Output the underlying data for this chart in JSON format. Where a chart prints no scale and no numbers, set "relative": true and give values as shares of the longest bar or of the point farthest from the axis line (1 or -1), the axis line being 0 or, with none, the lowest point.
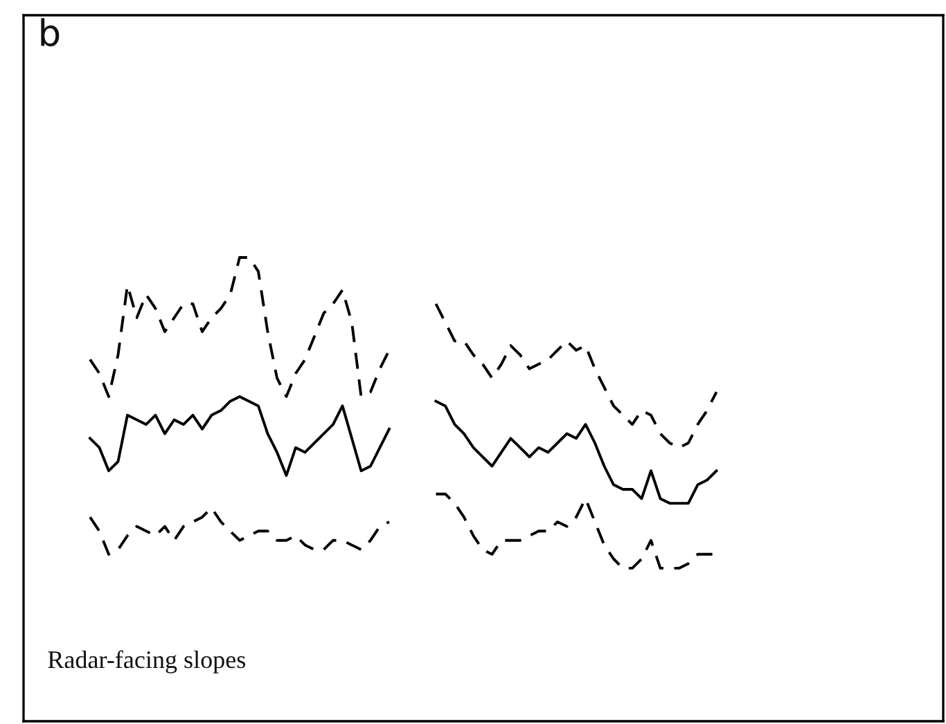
{
  "chart_data": {
    "type": "line",
    "relative": true,
    "marker": "none",
    "categories": [
      null,
      null,
      null,
      null,
      null,
      null,
      null,
      null,
      null,
      null,
      null,
      null,
      null,
      null,
      null,
      null,
      null,
      null,
      null,
      null,
      null,
      null,
      null,
      null,
      null,
      null,
      null,
      null,
      null,
      null,
      null,
      null,
      null,
      null,
      null,
      null,
      null,
      null,
      null,
      null,
      null,
      null,
      null,
      null,
      null,
      null,
      null,
      null,
      null,
      null,
      null,
      null,
      null,
      null,
      null,
      null,
      null,
      null,
      null,
      null,
      null,
      null,
      null,
      null,
      null,
      null,
      null,
      null
    ],
    "annotations": [
      "b",
      "Radar-facing slopes"
    ],
    "series": [
      {
        "color": "#000000",
        "line_style": "solid",
        "values": [
          0.61,
          0.59,
          0.54,
          0.56,
          0.66,
          0.65,
          0.64,
          0.66,
          0.62,
          0.65,
          0.64,
          0.66,
          0.63,
          0.66,
          0.67,
          0.69,
          0.7,
          0.69,
          0.68,
          0.62,
          0.58,
          0.53,
          0.59,
          0.58,
          0.6,
          0.62,
          0.64,
          0.68,
          0.61,
          0.54,
          0.55,
          0.59,
          0.63,
          null,
          null,
          null,
          null,
          null,
          null,
          null,
          null,
          null,
          null,
          null,
          null,
          null,
          null,
          null,
          null,
          null,
          null,
          null,
          null,
          null,
          null,
          null,
          null,
          null,
          null,
          null,
          null,
          null,
          null,
          null,
          null,
          null,
          null,
          null
        ]
      },
      {
        "color": "#000000",
        "line_style": "solid",
        "values": [
          null,
          null,
          null,
          null,
          null,
          null,
          null,
          null,
          null,
          null,
          null,
          null,
          null,
          null,
          null,
          null,
          null,
          null,
          null,
          null,
          null,
          null,
          null,
          null,
          null,
          null,
          null,
          null,
          null,
          null,
          null,
          null,
          null,
          null,
          null,
          null,
          null,
          0.69,
          0.68,
          0.64,
          0.62,
          0.59,
          0.57,
          0.55,
          0.58,
          0.61,
          0.59,
          0.57,
          0.59,
          0.58,
          0.6,
          0.62,
          0.61,
          0.64,
          0.6,
          0.55,
          0.51,
          0.5,
          0.5,
          0.48,
          0.54,
          0.48,
          0.47,
          0.47,
          0.47,
          0.51,
          0.52,
          0.54
        ]
      },
      {
        "color": "#000000",
        "line_style": "dashed",
        "values": [
          0.78,
          0.75,
          0.7,
          0.79,
          0.94,
          0.87,
          0.92,
          0.89,
          0.84,
          0.87,
          0.9,
          0.9,
          0.84,
          0.87,
          0.89,
          0.92,
          1.0,
          1.0,
          0.97,
          0.84,
          0.74,
          0.7,
          0.75,
          0.78,
          0.83,
          0.88,
          0.9,
          0.93,
          0.86,
          0.7,
          0.71,
          0.76,
          0.8,
          null,
          null,
          null,
          null,
          null,
          null,
          null,
          null,
          null,
          null,
          null,
          null,
          null,
          null,
          null,
          null,
          null,
          null,
          null,
          null,
          null,
          null,
          null,
          null,
          null,
          null,
          null,
          null,
          null,
          null,
          null,
          null,
          null,
          null,
          null
        ]
      },
      {
        "color": "#000000",
        "line_style": "dashed",
        "values": [
          null,
          null,
          null,
          null,
          null,
          null,
          null,
          null,
          null,
          null,
          null,
          null,
          null,
          null,
          null,
          null,
          null,
          null,
          null,
          null,
          null,
          null,
          null,
          null,
          null,
          null,
          null,
          null,
          null,
          null,
          null,
          null,
          null,
          null,
          null,
          null,
          null,
          0.9,
          0.86,
          0.82,
          0.82,
          0.79,
          0.77,
          0.74,
          0.77,
          0.81,
          0.79,
          0.76,
          0.77,
          0.78,
          0.8,
          0.82,
          0.8,
          0.81,
          0.76,
          0.72,
          0.68,
          0.66,
          0.64,
          0.67,
          0.66,
          0.62,
          0.6,
          0.59,
          0.6,
          0.64,
          0.67,
          0.71
        ]
      },
      {
        "color": "#000000",
        "line_style": "dashed",
        "values": [
          0.44,
          0.41,
          0.36,
          0.37,
          0.4,
          0.42,
          0.41,
          0.4,
          0.42,
          0.39,
          0.42,
          0.43,
          0.44,
          0.46,
          0.43,
          0.41,
          0.39,
          0.4,
          0.41,
          0.41,
          0.39,
          0.39,
          0.4,
          0.38,
          0.37,
          0.37,
          0.39,
          0.39,
          0.38,
          0.37,
          0.39,
          0.42,
          0.43,
          null,
          null,
          null,
          null,
          null,
          null,
          null,
          null,
          null,
          null,
          null,
          null,
          null,
          null,
          null,
          null,
          null,
          null,
          null,
          null,
          null,
          null,
          null,
          null,
          null,
          null,
          null,
          null,
          null,
          null,
          null,
          null,
          null,
          null,
          null
        ]
      },
      {
        "color": "#000000",
        "line_style": "dashed",
        "values": [
          null,
          null,
          null,
          null,
          null,
          null,
          null,
          null,
          null,
          null,
          null,
          null,
          null,
          null,
          null,
          null,
          null,
          null,
          null,
          null,
          null,
          null,
          null,
          null,
          null,
          null,
          null,
          null,
          null,
          null,
          null,
          null,
          null,
          null,
          null,
          null,
          null,
          0.49,
          0.49,
          0.47,
          0.44,
          0.4,
          0.37,
          0.36,
          0.39,
          0.39,
          0.39,
          0.4,
          0.41,
          0.41,
          0.43,
          0.42,
          0.44,
          0.48,
          0.43,
          0.38,
          0.35,
          0.33,
          0.33,
          0.35,
          0.39,
          0.33,
          0.33,
          0.33,
          0.34,
          0.36,
          0.36,
          0.36
        ]
      }
    ]
  }
}
